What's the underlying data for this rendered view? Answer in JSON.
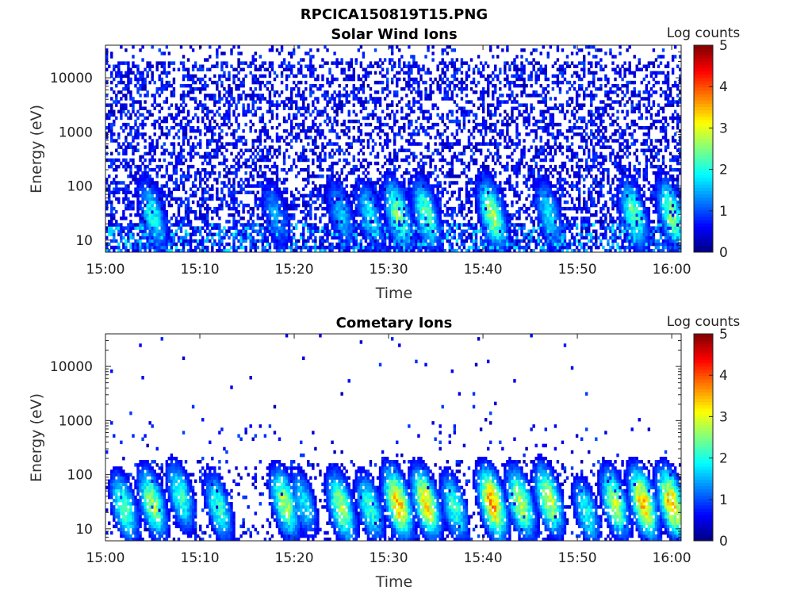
{
  "figure_title": "RPCICA150819T15.PNG",
  "chart_data": [
    {
      "type": "heatmap",
      "title": "Solar Wind Ions",
      "xlabel": "Time",
      "ylabel": "Energy (eV)",
      "xticks": [
        "15:00",
        "15:10",
        "15:20",
        "15:30",
        "15:40",
        "15:50",
        "16:00"
      ],
      "xlim": [
        "15:00",
        "16:01"
      ],
      "yscale": "log",
      "yticks": [
        10,
        100,
        1000,
        10000
      ],
      "ytick_labels": [
        "10",
        "100",
        "1000",
        "10000"
      ],
      "ylim": [
        6,
        40000
      ],
      "colorbar": {
        "label": "Log counts",
        "range": [
          0,
          5
        ],
        "ticks": [
          "0",
          "1",
          "2",
          "3",
          "4",
          "5"
        ],
        "colormap": "jet"
      },
      "pattern": "sparse blue counts (log 0-1) across all energies; bursts up to log 3 near 20-40 eV",
      "bursts": [
        {
          "time": "15:05",
          "energy_eV": 30,
          "log_counts": 2.2
        },
        {
          "time": "15:18",
          "energy_eV": 30,
          "log_counts": 1.6
        },
        {
          "time": "15:25",
          "energy_eV": 30,
          "log_counts": 1.8
        },
        {
          "time": "15:28",
          "energy_eV": 30,
          "log_counts": 2.0
        },
        {
          "time": "15:31",
          "energy_eV": 30,
          "log_counts": 2.8
        },
        {
          "time": "15:34",
          "energy_eV": 30,
          "log_counts": 2.6
        },
        {
          "time": "15:41",
          "energy_eV": 30,
          "log_counts": 3.0
        },
        {
          "time": "15:47",
          "energy_eV": 30,
          "log_counts": 2.0
        },
        {
          "time": "15:56",
          "energy_eV": 30,
          "log_counts": 2.6
        },
        {
          "time": "16:00",
          "energy_eV": 30,
          "log_counts": 2.8
        }
      ]
    },
    {
      "type": "heatmap",
      "title": "Cometary Ions",
      "xlabel": "Time",
      "ylabel": "Energy (eV)",
      "xticks": [
        "15:00",
        "15:10",
        "15:20",
        "15:30",
        "15:40",
        "15:50",
        "16:00"
      ],
      "xlim": [
        "15:00",
        "16:01"
      ],
      "yscale": "log",
      "yticks": [
        10,
        100,
        1000,
        10000
      ],
      "ytick_labels": [
        "10",
        "100",
        "1000",
        "10000"
      ],
      "ylim": [
        6,
        40000
      ],
      "colorbar": {
        "label": "Log counts",
        "range": [
          0,
          5
        ],
        "ticks": [
          "0",
          "1",
          "2",
          "3",
          "4",
          "5"
        ],
        "colormap": "jet"
      },
      "pattern": "intense bursts at 15-150 eV with dispersion streaks; sparse counts above 1000 eV",
      "bursts": [
        {
          "time": "15:02",
          "energy_eV": 25,
          "log_counts": 2.6
        },
        {
          "time": "15:05",
          "energy_eV": 30,
          "log_counts": 3.0
        },
        {
          "time": "15:08",
          "energy_eV": 40,
          "log_counts": 2.4
        },
        {
          "time": "15:12",
          "energy_eV": 25,
          "log_counts": 2.4
        },
        {
          "time": "15:19",
          "energy_eV": 30,
          "log_counts": 3.0
        },
        {
          "time": "15:21",
          "energy_eV": 30,
          "log_counts": 2.0
        },
        {
          "time": "15:25",
          "energy_eV": 25,
          "log_counts": 3.0
        },
        {
          "time": "15:28",
          "energy_eV": 25,
          "log_counts": 2.4
        },
        {
          "time": "15:31",
          "energy_eV": 30,
          "log_counts": 3.8
        },
        {
          "time": "15:34",
          "energy_eV": 30,
          "log_counts": 3.6
        },
        {
          "time": "15:37",
          "energy_eV": 25,
          "log_counts": 2.4
        },
        {
          "time": "15:41",
          "energy_eV": 30,
          "log_counts": 4.0
        },
        {
          "time": "15:44",
          "energy_eV": 30,
          "log_counts": 3.2
        },
        {
          "time": "15:47",
          "energy_eV": 35,
          "log_counts": 3.2
        },
        {
          "time": "15:51",
          "energy_eV": 20,
          "log_counts": 2.2
        },
        {
          "time": "15:54",
          "energy_eV": 30,
          "log_counts": 3.0
        },
        {
          "time": "15:57",
          "energy_eV": 30,
          "log_counts": 3.8
        },
        {
          "time": "16:00",
          "energy_eV": 30,
          "log_counts": 3.8
        }
      ]
    }
  ]
}
